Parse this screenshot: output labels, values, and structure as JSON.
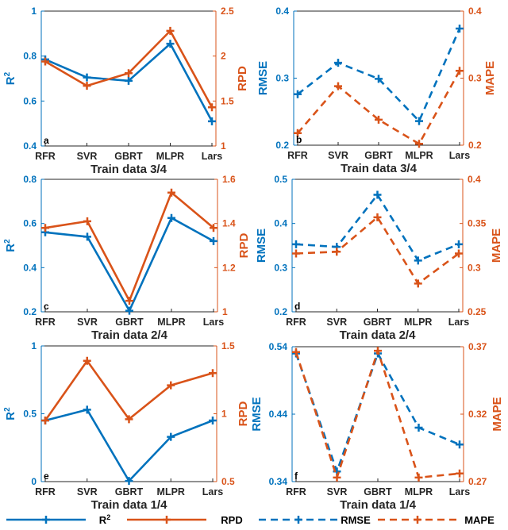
{
  "colors": {
    "blue": "#0072BD",
    "orange": "#D95319",
    "axis": "#262626"
  },
  "legend": {
    "items": [
      {
        "label": "R",
        "sup": "2",
        "style": "solid",
        "color": "#0072BD"
      },
      {
        "label": "RPD",
        "style": "solid",
        "color": "#D95319"
      },
      {
        "label": "RMSE",
        "style": "dashed",
        "color": "#0072BD"
      },
      {
        "label": "MAPE",
        "style": "dashed",
        "color": "#D95319"
      }
    ]
  },
  "chart_data": [
    {
      "panel": "a",
      "type": "line",
      "title": "Train data 3/4",
      "categories": [
        "RFR",
        "SVR",
        "GBRT",
        "MLPR",
        "Lars"
      ],
      "left_axis": {
        "label": "R",
        "sup": "2",
        "ylim": [
          0.4,
          1
        ],
        "ticks": [
          "0.4",
          "0.6",
          "0.8",
          "1"
        ],
        "tickvals": [
          0.4,
          0.6,
          0.8,
          1
        ]
      },
      "right_axis": {
        "label": "RPD",
        "ylim": [
          1,
          2.5
        ],
        "ticks": [
          "1",
          "1.5",
          "2",
          "2.5"
        ],
        "tickvals": [
          1,
          1.5,
          2,
          2.5
        ]
      },
      "series": [
        {
          "name": "R2",
          "axis": "left",
          "style": "solid",
          "color": "#0072BD",
          "values": [
            0.785,
            0.705,
            0.69,
            0.855,
            0.51
          ]
        },
        {
          "name": "RPD",
          "axis": "right",
          "style": "solid",
          "color": "#D95319",
          "values": [
            1.94,
            1.67,
            1.81,
            2.28,
            1.43
          ]
        }
      ]
    },
    {
      "panel": "b",
      "type": "line",
      "title": "Train data 3/4",
      "categories": [
        "RFR",
        "SVR",
        "GBRT",
        "MLPR",
        "Lars"
      ],
      "left_axis": {
        "label": "RMSE",
        "ylim": [
          0.2,
          0.4
        ],
        "ticks": [
          "0.2",
          "0.3",
          "0.4"
        ],
        "tickvals": [
          0.2,
          0.3,
          0.4
        ]
      },
      "right_axis": {
        "label": "MAPE",
        "ylim": [
          0.2,
          0.4
        ],
        "ticks": [
          "0.2",
          "0.3",
          "0.4"
        ],
        "tickvals": [
          0.2,
          0.3,
          0.4
        ]
      },
      "series": [
        {
          "name": "RMSE",
          "axis": "left",
          "style": "dashed",
          "color": "#0072BD",
          "values": [
            0.276,
            0.323,
            0.299,
            0.236,
            0.374
          ]
        },
        {
          "name": "MAPE",
          "axis": "right",
          "style": "dashed",
          "color": "#D95319",
          "values": [
            0.218,
            0.288,
            0.238,
            0.202,
            0.311
          ]
        }
      ]
    },
    {
      "panel": "c",
      "type": "line",
      "title": "Train data 2/4",
      "categories": [
        "RFR",
        "SVR",
        "GBRT",
        "MLPR",
        "Lars"
      ],
      "left_axis": {
        "label": "R",
        "sup": "2",
        "ylim": [
          0.2,
          0.8
        ],
        "ticks": [
          "0.2",
          "0.4",
          "0.6",
          "0.8"
        ],
        "tickvals": [
          0.2,
          0.4,
          0.6,
          0.8
        ]
      },
      "right_axis": {
        "label": "RPD",
        "ylim": [
          1,
          1.6
        ],
        "ticks": [
          "1",
          "1.2",
          "1.4",
          "1.6"
        ],
        "tickvals": [
          1,
          1.2,
          1.4,
          1.6
        ]
      },
      "series": [
        {
          "name": "R2",
          "axis": "left",
          "style": "solid",
          "color": "#0072BD",
          "values": [
            0.56,
            0.54,
            0.205,
            0.625,
            0.52
          ]
        },
        {
          "name": "RPD",
          "axis": "right",
          "style": "solid",
          "color": "#D95319",
          "values": [
            1.38,
            1.41,
            1.05,
            1.54,
            1.38
          ]
        }
      ]
    },
    {
      "panel": "d",
      "type": "line",
      "title": "Train data 2/4",
      "categories": [
        "RFR",
        "SVR",
        "GBRT",
        "MLPR",
        "Lars"
      ],
      "left_axis": {
        "label": "RMSE",
        "ylim": [
          0.2,
          0.5
        ],
        "ticks": [
          "0.2",
          "0.3",
          "0.4",
          "0.5"
        ],
        "tickvals": [
          0.2,
          0.3,
          0.4,
          0.5
        ]
      },
      "right_axis": {
        "label": "MAPE",
        "ylim": [
          0.25,
          0.4
        ],
        "ticks": [
          "0.25",
          "0.3",
          "0.35",
          "0.4"
        ],
        "tickvals": [
          0.25,
          0.3,
          0.35,
          0.4
        ]
      },
      "series": [
        {
          "name": "RMSE",
          "axis": "left",
          "style": "dashed",
          "color": "#0072BD",
          "values": [
            0.353,
            0.347,
            0.465,
            0.316,
            0.353
          ]
        },
        {
          "name": "MAPE",
          "axis": "right",
          "style": "dashed",
          "color": "#D95319",
          "values": [
            0.316,
            0.318,
            0.357,
            0.282,
            0.316
          ]
        }
      ]
    },
    {
      "panel": "e",
      "type": "line",
      "title": "Train data 1/4",
      "categories": [
        "RFR",
        "SVR",
        "GBRT",
        "MLPR",
        "Lars"
      ],
      "left_axis": {
        "label": "R",
        "sup": "2",
        "ylim": [
          0,
          1
        ],
        "ticks": [
          "0",
          "0.5",
          "1"
        ],
        "tickvals": [
          0,
          0.5,
          1
        ]
      },
      "right_axis": {
        "label": "RPD",
        "ylim": [
          0.5,
          1.5
        ],
        "ticks": [
          "0.5",
          "1",
          "1.5"
        ],
        "tickvals": [
          0.5,
          1,
          1.5
        ]
      },
      "series": [
        {
          "name": "R2",
          "axis": "left",
          "style": "solid",
          "color": "#0072BD",
          "values": [
            0.45,
            0.53,
            0.005,
            0.33,
            0.45
          ]
        },
        {
          "name": "RPD",
          "axis": "right",
          "style": "solid",
          "color": "#D95319",
          "values": [
            0.95,
            1.39,
            0.96,
            1.21,
            1.3
          ]
        }
      ]
    },
    {
      "panel": "f",
      "type": "line",
      "title": "Train data 1/4",
      "categories": [
        "RFR",
        "SVR",
        "GBRT",
        "MLPR",
        "Lars"
      ],
      "left_axis": {
        "label": "RMSE",
        "ylim": [
          0.34,
          0.54
        ],
        "ticks": [
          "0.34",
          "0.44",
          "0.54"
        ],
        "tickvals": [
          0.34,
          0.44,
          0.54
        ]
      },
      "right_axis": {
        "label": "MAPE",
        "ylim": [
          0.27,
          0.37
        ],
        "ticks": [
          "0.27",
          "0.32",
          "0.37"
        ],
        "tickvals": [
          0.27,
          0.32,
          0.37
        ]
      },
      "series": [
        {
          "name": "RMSE",
          "axis": "left",
          "style": "dashed",
          "color": "#0072BD",
          "values": [
            0.53,
            0.355,
            0.53,
            0.42,
            0.395
          ]
        },
        {
          "name": "MAPE",
          "axis": "right",
          "style": "dashed",
          "color": "#D95319",
          "values": [
            0.366,
            0.273,
            0.367,
            0.273,
            0.276
          ]
        }
      ]
    }
  ]
}
